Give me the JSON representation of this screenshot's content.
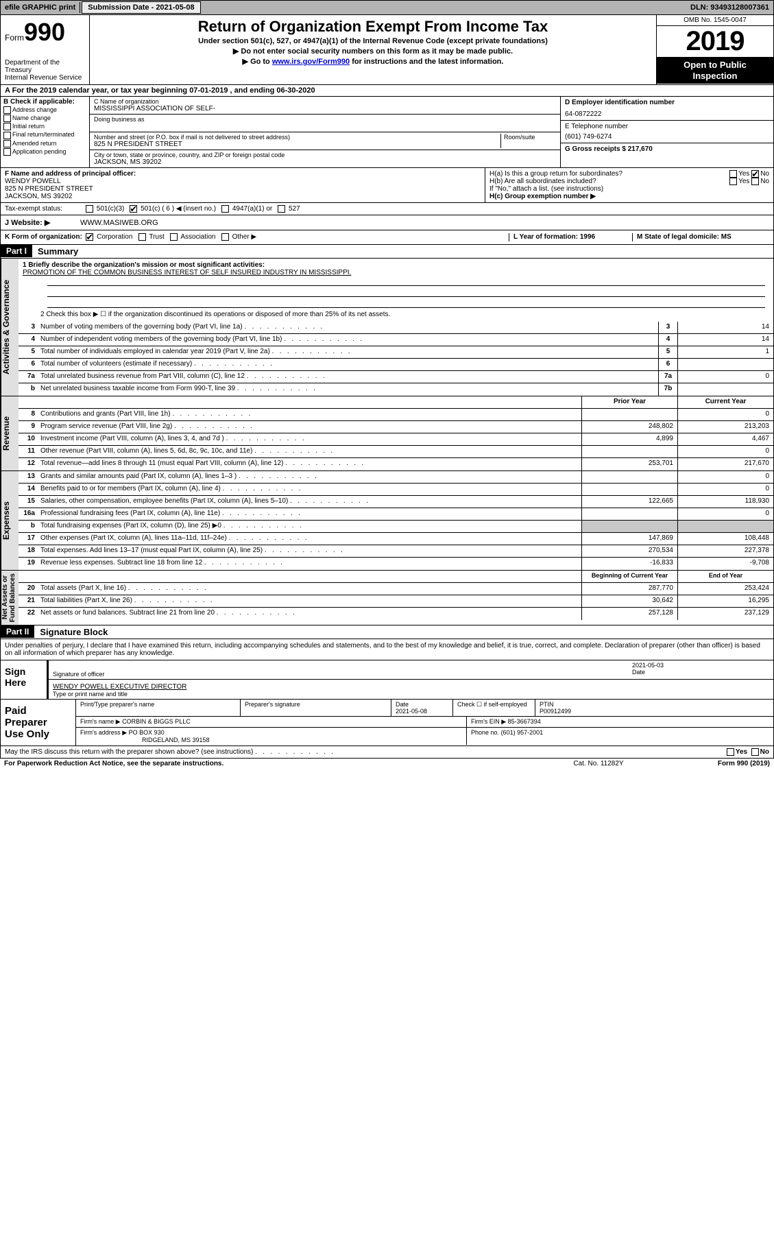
{
  "topbar": {
    "efile": "efile GRAPHIC print",
    "submission_label": "Submission Date - 2021-05-08",
    "dln": "DLN: 93493128007361"
  },
  "header": {
    "form_small": "Form",
    "form_num": "990",
    "department": "Department of the Treasury\nInternal Revenue Service",
    "title": "Return of Organization Exempt From Income Tax",
    "subtitle": "Under section 501(c), 527, or 4947(a)(1) of the Internal Revenue Code (except private foundations)",
    "note1": "▶ Do not enter social security numbers on this form as it may be made public.",
    "note2_pre": "▶ Go to ",
    "note2_link": "www.irs.gov/Form990",
    "note2_post": " for instructions and the latest information.",
    "omb": "OMB No. 1545-0047",
    "year": "2019",
    "open": "Open to Public\nInspection"
  },
  "rowA": "A For the 2019 calendar year, or tax year beginning 07-01-2019   , and ending 06-30-2020",
  "colB": {
    "label": "B Check if applicable:",
    "items": [
      "Address change",
      "Name change",
      "Initial return",
      "Final return/terminated",
      "Amended return",
      "Application pending"
    ]
  },
  "colC": {
    "name_lbl": "C Name of organization",
    "name": "MISSISSIPPI ASSOCIATION OF SELF-",
    "dba_lbl": "Doing business as",
    "street_lbl": "Number and street (or P.O. box if mail is not delivered to street address)",
    "room_lbl": "Room/suite",
    "street": "825 N PRESIDENT STREET",
    "city_lbl": "City or town, state or province, country, and ZIP or foreign postal code",
    "city": "JACKSON, MS  39202"
  },
  "colD": {
    "ein_lbl": "D Employer identification number",
    "ein": "64-0872222",
    "phone_lbl": "E Telephone number",
    "phone": "(601) 749-6274",
    "gross_lbl": "G Gross receipts $ 217,670"
  },
  "rowF": {
    "label": "F  Name and address of principal officer:",
    "name": "WENDY POWELL",
    "addr1": "825 N PRESIDENT STREET",
    "addr2": "JACKSON, MS  39202",
    "ha": "H(a)  Is this a group return for subordinates?",
    "hb": "H(b)  Are all subordinates included?",
    "hnote": "If \"No,\" attach a list. (see instructions)",
    "hc": "H(c)  Group exemption number ▶"
  },
  "taxExempt": {
    "label": "Tax-exempt status:",
    "opts": [
      "501(c)(3)",
      "501(c) ( 6 ) ◀ (insert no.)",
      "4947(a)(1) or",
      "527"
    ]
  },
  "rowJ": {
    "label": "J   Website: ▶",
    "value": "WWW.MASIWEB.ORG"
  },
  "rowK": {
    "label": "K Form of organization:",
    "opts": [
      "Corporation",
      "Trust",
      "Association",
      "Other ▶"
    ],
    "l": "L Year of formation: 1996",
    "m": "M State of legal domicile: MS"
  },
  "part1": {
    "hdr": "Part I",
    "title": "Summary",
    "line1_lbl": "1  Briefly describe the organization's mission or most significant activities:",
    "line1_val": "PROMOTION OF THE COMMON BUSINESS INTEREST OF SELF INSURED INDUSTRY IN MISSISSIPPI.",
    "line2": "2   Check this box ▶ ☐  if the organization discontinued its operations or disposed of more than 25% of its net assets.",
    "side1": "Activities & Governance",
    "rows_top": [
      {
        "n": "3",
        "d": "Number of voting members of the governing body (Part VI, line 1a)",
        "b": "3",
        "v": "14"
      },
      {
        "n": "4",
        "d": "Number of independent voting members of the governing body (Part VI, line 1b)",
        "b": "4",
        "v": "14"
      },
      {
        "n": "5",
        "d": "Total number of individuals employed in calendar year 2019 (Part V, line 2a)",
        "b": "5",
        "v": "1"
      },
      {
        "n": "6",
        "d": "Total number of volunteers (estimate if necessary)",
        "b": "6",
        "v": ""
      },
      {
        "n": "7a",
        "d": "Total unrelated business revenue from Part VIII, column (C), line 12",
        "b": "7a",
        "v": "0"
      },
      {
        "n": "b",
        "d": "Net unrelated business taxable income from Form 990-T, line 39",
        "b": "7b",
        "v": ""
      }
    ],
    "col_hdrs": {
      "prior": "Prior Year",
      "current": "Current Year"
    },
    "side2": "Revenue",
    "revenue": [
      {
        "n": "8",
        "d": "Contributions and grants (Part VIII, line 1h)",
        "p": "",
        "c": "0"
      },
      {
        "n": "9",
        "d": "Program service revenue (Part VIII, line 2g)",
        "p": "248,802",
        "c": "213,203"
      },
      {
        "n": "10",
        "d": "Investment income (Part VIII, column (A), lines 3, 4, and 7d )",
        "p": "4,899",
        "c": "4,467"
      },
      {
        "n": "11",
        "d": "Other revenue (Part VIII, column (A), lines 5, 6d, 8c, 9c, 10c, and 11e)",
        "p": "",
        "c": "0"
      },
      {
        "n": "12",
        "d": "Total revenue—add lines 8 through 11 (must equal Part VIII, column (A), line 12)",
        "p": "253,701",
        "c": "217,670"
      }
    ],
    "side3": "Expenses",
    "expenses": [
      {
        "n": "13",
        "d": "Grants and similar amounts paid (Part IX, column (A), lines 1–3 )",
        "p": "",
        "c": "0"
      },
      {
        "n": "14",
        "d": "Benefits paid to or for members (Part IX, column (A), line 4)",
        "p": "",
        "c": "0"
      },
      {
        "n": "15",
        "d": "Salaries, other compensation, employee benefits (Part IX, column (A), lines 5–10)",
        "p": "122,665",
        "c": "118,930"
      },
      {
        "n": "16a",
        "d": "Professional fundraising fees (Part IX, column (A), line 11e)",
        "p": "",
        "c": "0"
      },
      {
        "n": "b",
        "d": "Total fundraising expenses (Part IX, column (D), line 25) ▶0",
        "p": "GRAY",
        "c": "GRAY"
      },
      {
        "n": "17",
        "d": "Other expenses (Part IX, column (A), lines 11a–11d, 11f–24e)",
        "p": "147,869",
        "c": "108,448"
      },
      {
        "n": "18",
        "d": "Total expenses. Add lines 13–17 (must equal Part IX, column (A), line 25)",
        "p": "270,534",
        "c": "227,378"
      },
      {
        "n": "19",
        "d": "Revenue less expenses. Subtract line 18 from line 12",
        "p": "-16,833",
        "c": "-9,708"
      }
    ],
    "col_hdrs2": {
      "prior": "Beginning of Current Year",
      "current": "End of Year"
    },
    "side4": "Net Assets or\nFund Balances",
    "net": [
      {
        "n": "20",
        "d": "Total assets (Part X, line 16)",
        "p": "287,770",
        "c": "253,424"
      },
      {
        "n": "21",
        "d": "Total liabilities (Part X, line 26)",
        "p": "30,642",
        "c": "16,295"
      },
      {
        "n": "22",
        "d": "Net assets or fund balances. Subtract line 21 from line 20",
        "p": "257,128",
        "c": "237,129"
      }
    ]
  },
  "part2": {
    "hdr": "Part II",
    "title": "Signature Block",
    "decl": "Under penalties of perjury, I declare that I have examined this return, including accompanying schedules and statements, and to the best of my knowledge and belief, it is true, correct, and complete. Declaration of preparer (other than officer) is based on all information of which preparer has any knowledge.",
    "sign_here": "Sign\nHere",
    "sig_officer": "Signature of officer",
    "sig_date": "2021-05-03",
    "date_lbl": "Date",
    "officer_name": "WENDY POWELL  EXECUTIVE DIRECTOR",
    "type_name": "Type or print name and title",
    "paid": "Paid\nPreparer\nUse Only",
    "prep_name_lbl": "Print/Type preparer's name",
    "prep_sig_lbl": "Preparer's signature",
    "prep_date_lbl": "Date",
    "prep_date": "2021-05-08",
    "check_self": "Check ☐ if self-employed",
    "ptin_lbl": "PTIN",
    "ptin": "P00912499",
    "firm_name_lbl": "Firm's name     ▶",
    "firm_name": "CORBIN & BIGGS PLLC",
    "firm_ein_lbl": "Firm's EIN ▶",
    "firm_ein": "85-3667394",
    "firm_addr_lbl": "Firm's address ▶",
    "firm_addr1": "PO BOX 930",
    "firm_addr2": "RIDGELAND, MS  39158",
    "phone_lbl": "Phone no.",
    "phone": "(601) 957-2001",
    "discuss": "May the IRS discuss this return with the preparer shown above? (see instructions)"
  },
  "footer": {
    "paperwork": "For Paperwork Reduction Act Notice, see the separate instructions.",
    "cat": "Cat. No. 11282Y",
    "form": "Form 990 (2019)"
  }
}
